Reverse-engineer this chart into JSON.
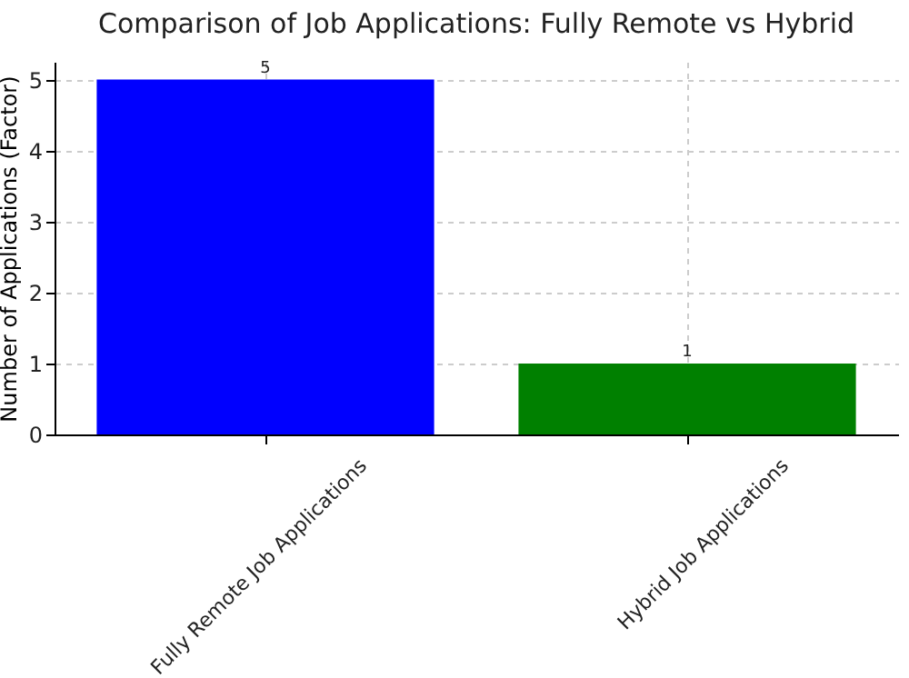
{
  "chart_data": {
    "type": "bar",
    "title": "Comparison of Job Applications: Fully Remote vs Hybrid",
    "ylabel": "Number of Applications (Factor)",
    "categories": [
      "Fully Remote Job Applications",
      "Hybrid Job Applications"
    ],
    "values": [
      5,
      1
    ],
    "colors": [
      "#0000ff",
      "#008000"
    ],
    "ylim": [
      0,
      5.25
    ],
    "yticks": [
      0,
      1,
      2,
      3,
      4,
      5
    ],
    "grid": true,
    "data_labels": true
  }
}
